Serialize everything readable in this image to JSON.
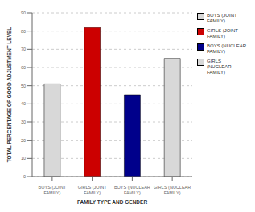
{
  "chart_data": {
    "type": "bar",
    "categories": [
      "BOYS (JOINT\nFAMILY)",
      "GIRLS (JOINT\nFAMILY)",
      "BOYS (NUCLEAR\nFAMILY)",
      "GIRLS (NUCLEAR\nFAMILY)"
    ],
    "values": [
      51,
      82,
      45,
      65
    ],
    "colors": [
      "#d8d8d8",
      "#cc0000",
      "#00008b",
      "#d8d8d8"
    ],
    "xlabel": "FAMILY TYPE AND GENDER",
    "ylabel": "TOTAL PERCENTAGE OF GOOD ADJUSTMENT LEVEL",
    "ylim": [
      0,
      90
    ],
    "yticks": [
      0,
      10,
      20,
      30,
      40,
      50,
      60,
      70,
      80,
      90
    ],
    "grid": true,
    "legend": "right",
    "legend_labels": [
      "BOYS (JOINT FAMILY)",
      "GIRLS (JOINT FAMILY)",
      "BOYS (NUCLEAR FAMILY)",
      "GIRLS (NUCLEAR FAMILY)"
    ]
  }
}
